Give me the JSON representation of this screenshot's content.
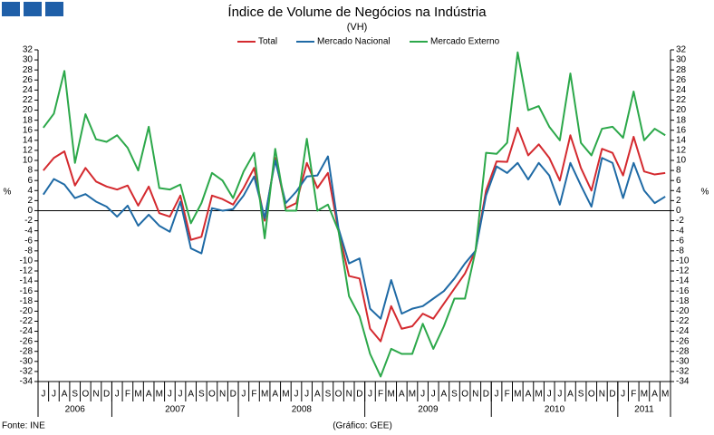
{
  "chart_data": {
    "type": "line",
    "title": "Índice de Volume de Negócios na Indústria",
    "subtitle": "(VH)",
    "ylabel": "%",
    "source": "Fonte: INE",
    "credit": "(Gráfico: GEE)",
    "categories": [
      "J",
      "J",
      "A",
      "S",
      "O",
      "N",
      "D",
      "J",
      "F",
      "M",
      "A",
      "M",
      "J",
      "J",
      "A",
      "S",
      "O",
      "N",
      "D",
      "J",
      "F",
      "M",
      "A",
      "M",
      "J",
      "J",
      "A",
      "S",
      "O",
      "N",
      "D",
      "J",
      "F",
      "M",
      "A",
      "M",
      "J",
      "J",
      "A",
      "S",
      "O",
      "N",
      "D",
      "J",
      "F",
      "M",
      "A",
      "M",
      "J",
      "J",
      "A",
      "S",
      "O",
      "N",
      "D",
      "J",
      "F",
      "M",
      "A",
      "M"
    ],
    "years": [
      "2006",
      null,
      null,
      null,
      null,
      null,
      null,
      "2007",
      null,
      null,
      null,
      null,
      null,
      null,
      null,
      null,
      null,
      null,
      null,
      "2008",
      null,
      null,
      null,
      null,
      null,
      null,
      null,
      null,
      null,
      null,
      null,
      "2009",
      null,
      null,
      null,
      null,
      null,
      null,
      null,
      null,
      null,
      null,
      null,
      "2010",
      null,
      null,
      null,
      null,
      null,
      null,
      null,
      null,
      null,
      null,
      null,
      "2011",
      null,
      null,
      null,
      null
    ],
    "series": [
      {
        "name": "Total",
        "color": "#d42a2f",
        "values": [
          8,
          10.5,
          11.8,
          5,
          8.5,
          5.8,
          4.8,
          4.2,
          5,
          1,
          4.8,
          -0.5,
          -1.2,
          3,
          -5.8,
          -5.2,
          3,
          2.3,
          1.2,
          4.5,
          8.5,
          -2,
          10.5,
          0.5,
          1.5,
          9.5,
          4.5,
          7.5,
          -4,
          -13,
          -13.5,
          -23.5,
          -26,
          -19,
          -23.5,
          -23,
          -20.5,
          -21.5,
          -18.5,
          -15.5,
          -12.5,
          -8,
          4,
          9.8,
          9.7,
          16.5,
          11,
          13.2,
          10.5,
          6,
          15,
          8.5,
          4,
          12.3,
          11.5,
          7,
          14.7,
          7.8,
          7.2,
          7.5
        ]
      },
      {
        "name": "Mercado Nacional",
        "color": "#1f6aa5",
        "values": [
          3.2,
          6.3,
          5.2,
          2.5,
          3.3,
          1.8,
          0.8,
          -1.2,
          1,
          -3,
          -0.8,
          -3,
          -4.2,
          1.8,
          -7.5,
          -8.5,
          0.5,
          0,
          0.3,
          3,
          6.8,
          -1.5,
          10,
          1.5,
          3.8,
          6.8,
          7,
          10.8,
          -3.5,
          -10.5,
          -9.5,
          -19.5,
          -21.5,
          -13.8,
          -20.5,
          -19.5,
          -19,
          -17.5,
          -16,
          -13.5,
          -10.5,
          -8,
          3,
          8.8,
          7.5,
          9.5,
          6.2,
          9.5,
          7,
          1.2,
          9.5,
          5,
          0.8,
          10.5,
          9.5,
          2.5,
          9.5,
          4,
          1.5,
          2.8
        ]
      },
      {
        "name": "Mercado Externo",
        "color": "#2ca84a",
        "values": [
          16.5,
          19.3,
          27.8,
          9.5,
          19.2,
          14.2,
          13.7,
          15,
          12.5,
          8,
          16.7,
          4.5,
          4.2,
          5.2,
          -2.5,
          1.5,
          7.5,
          6,
          2.5,
          7.8,
          11.5,
          -5.5,
          12.3,
          0,
          0,
          14.3,
          0,
          1.2,
          -4,
          -17,
          -21,
          -28.5,
          -33,
          -27.5,
          -28.5,
          -28.5,
          -22.5,
          -27.5,
          -23,
          -17.5,
          -17.5,
          -8,
          11.5,
          11.3,
          13.5,
          31.5,
          20,
          20.8,
          16.7,
          14,
          27.3,
          13.5,
          11,
          16.3,
          16.7,
          14.5,
          23.7,
          14,
          16.3,
          15
        ]
      }
    ],
    "ylim": [
      -34,
      32
    ],
    "yticks": [
      -34,
      -32,
      -30,
      -28,
      -26,
      -24,
      -22,
      -20,
      -18,
      -16,
      -14,
      -12,
      -10,
      -8,
      -6,
      -4,
      -2,
      0,
      2,
      4,
      6,
      8,
      10,
      12,
      14,
      16,
      18,
      20,
      22,
      24,
      26,
      28,
      30,
      32
    ]
  }
}
